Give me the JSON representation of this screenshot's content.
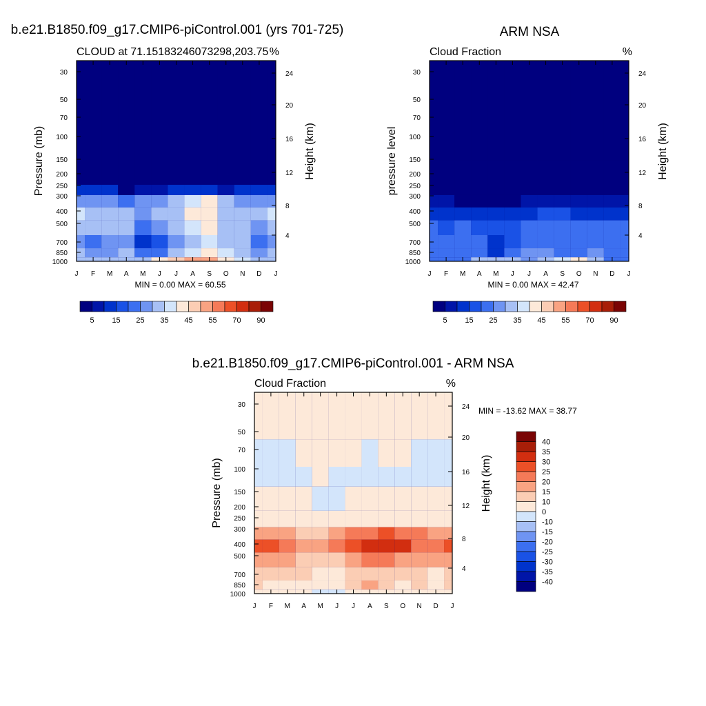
{
  "palettes": {
    "abs": [
      "#00007f",
      "#0015a8",
      "#0033cc",
      "#1a52e6",
      "#3c6ff0",
      "#6f94f2",
      "#a7c0f5",
      "#d3e5fb",
      "#fde9d9",
      "#fbcdb4",
      "#f9a382",
      "#f57a58",
      "#ec5027",
      "#d22e10",
      "#a81e08",
      "#7a0404"
    ],
    "diff": [
      "#00007f",
      "#0015a8",
      "#0033cc",
      "#1a52e6",
      "#3c6ff0",
      "#6f94f2",
      "#a7c0f5",
      "#d3e5fb",
      "#fde9d9",
      "#fbcdb4",
      "#f9a382",
      "#f57a58",
      "#ec5027",
      "#d22e10",
      "#a81e08",
      "#7a0404"
    ]
  },
  "colorbar_abs": {
    "labels": [
      "5",
      "15",
      "25",
      "35",
      "45",
      "55",
      "70",
      "90"
    ]
  },
  "colorbar_diff": {
    "labels": [
      "40",
      "35",
      "30",
      "25",
      "20",
      "15",
      "10",
      "0",
      "-10",
      "-15",
      "-20",
      "-25",
      "-30",
      "-35",
      "-40"
    ]
  },
  "chart_data": [
    {
      "type": "heatmap",
      "title": "b.e21.B1850.f09_g17.CMIP6-piControl.001 (yrs 701-725)",
      "subtitle_left": "CLOUD at 71.15183246073298,203.75",
      "subtitle_right": "%",
      "ylabel": "Pressure (mb)",
      "ylabel_right": "Height (km)",
      "x": [
        "J",
        "F",
        "M",
        "A",
        "M",
        "J",
        "J",
        "A",
        "S",
        "O",
        "N",
        "D",
        "J"
      ],
      "y_pressure_ticks": [
        "30",
        "50",
        "70",
        "100",
        "150",
        "200",
        "250",
        "300",
        "400",
        "500",
        "700",
        "850",
        "1000"
      ],
      "y_height_ticks": [
        "24",
        "20",
        "16",
        "12",
        "8",
        "4"
      ],
      "stats": "MIN =   0.00 MAX =  60.55",
      "min": 0.0,
      "max": 60.55,
      "bands": [
        {
          "p": 30,
          "values": [
            2,
            2,
            2,
            2,
            2,
            2,
            2,
            2,
            2,
            2,
            2,
            2,
            2
          ]
        },
        {
          "p": 200,
          "values": [
            3,
            3,
            3,
            2,
            2,
            2,
            2,
            2,
            2,
            2,
            2,
            3,
            3
          ]
        },
        {
          "p": 250,
          "values": [
            12,
            12,
            10,
            4,
            6,
            8,
            10,
            10,
            10,
            8,
            10,
            12,
            12
          ]
        },
        {
          "p": 300,
          "values": [
            28,
            26,
            26,
            24,
            26,
            28,
            30,
            38,
            40,
            30,
            28,
            28,
            28
          ]
        },
        {
          "p": 400,
          "values": [
            35,
            32,
            30,
            30,
            28,
            30,
            34,
            42,
            42,
            34,
            32,
            30,
            35
          ]
        },
        {
          "p": 500,
          "values": [
            30,
            30,
            30,
            32,
            22,
            26,
            34,
            36,
            40,
            34,
            34,
            28,
            30
          ]
        },
        {
          "p": 700,
          "values": [
            26,
            24,
            26,
            28,
            14,
            18,
            28,
            34,
            36,
            34,
            32,
            22,
            26
          ]
        },
        {
          "p": 850,
          "values": [
            30,
            28,
            28,
            30,
            22,
            24,
            32,
            38,
            44,
            36,
            34,
            28,
            30
          ]
        },
        {
          "p": 1000,
          "values": [
            32,
            32,
            32,
            34,
            34,
            40,
            48,
            52,
            50,
            40,
            36,
            34,
            32
          ]
        }
      ]
    },
    {
      "type": "heatmap",
      "title": "ARM NSA",
      "subtitle_left": "Cloud Fraction",
      "subtitle_right": "%",
      "ylabel": "pressure level",
      "ylabel_right": "Height (km)",
      "x": [
        "J",
        "F",
        "M",
        "A",
        "M",
        "J",
        "J",
        "A",
        "S",
        "O",
        "N",
        "D",
        "J"
      ],
      "y_pressure_ticks": [
        "30",
        "50",
        "70",
        "100",
        "150",
        "200",
        "250",
        "300",
        "400",
        "500",
        "700",
        "850",
        "1000"
      ],
      "y_height_ticks": [
        "24",
        "20",
        "16",
        "12",
        "8",
        "4"
      ],
      "stats": "MIN =   0.00 MAX =  42.47",
      "min": 0.0,
      "max": 42.47,
      "bands": [
        {
          "p": 30,
          "values": [
            1,
            1,
            1,
            1,
            1,
            1,
            1,
            1,
            1,
            1,
            1,
            1,
            1
          ]
        },
        {
          "p": 250,
          "values": [
            2,
            2,
            2,
            2,
            2,
            2,
            2,
            2,
            2,
            2,
            2,
            2,
            2
          ]
        },
        {
          "p": 300,
          "values": [
            6,
            6,
            4,
            3,
            3,
            4,
            5,
            6,
            8,
            8,
            8,
            6,
            6
          ]
        },
        {
          "p": 400,
          "values": [
            14,
            14,
            10,
            10,
            10,
            12,
            14,
            16,
            16,
            14,
            14,
            14,
            14
          ]
        },
        {
          "p": 500,
          "values": [
            20,
            18,
            20,
            18,
            16,
            18,
            22,
            20,
            22,
            20,
            20,
            20,
            20
          ]
        },
        {
          "p": 700,
          "values": [
            22,
            22,
            22,
            20,
            12,
            18,
            24,
            24,
            22,
            22,
            24,
            22,
            22
          ]
        },
        {
          "p": 850,
          "values": [
            24,
            24,
            24,
            24,
            14,
            20,
            26,
            26,
            24,
            24,
            26,
            24,
            24
          ]
        },
        {
          "p": 1000,
          "values": [
            22,
            22,
            22,
            30,
            34,
            30,
            28,
            32,
            36,
            40,
            30,
            22,
            22
          ]
        }
      ]
    },
    {
      "type": "heatmap",
      "title": "b.e21.B1850.f09_g17.CMIP6-piControl.001 - ARM NSA",
      "subtitle_left": "Cloud Fraction",
      "subtitle_right": "%",
      "ylabel": "Pressure (mb)",
      "ylabel_right": "Height (km)",
      "x": [
        "J",
        "F",
        "M",
        "A",
        "M",
        "J",
        "J",
        "A",
        "S",
        "O",
        "N",
        "D",
        "J"
      ],
      "y_pressure_ticks": [
        "30",
        "50",
        "70",
        "100",
        "150",
        "200",
        "250",
        "300",
        "400",
        "500",
        "700",
        "850",
        "1000"
      ],
      "y_height_ticks": [
        "24",
        "20",
        "16",
        "12",
        "8",
        "4"
      ],
      "stats": "MIN = -13.62 MAX =  38.77",
      "min": -13.62,
      "max": 38.77,
      "bands": [
        {
          "p": 30,
          "values": [
            2,
            2,
            2,
            2,
            2,
            2,
            2,
            2,
            2,
            2,
            2,
            2,
            2
          ]
        },
        {
          "p": 70,
          "values": [
            -1,
            -1,
            -1,
            2,
            2,
            2,
            2,
            -1,
            2,
            2,
            -1,
            -1,
            -1
          ]
        },
        {
          "p": 100,
          "values": [
            -1,
            -1,
            -1,
            -1,
            2,
            -1,
            -1,
            -1,
            -1,
            -1,
            -1,
            -1,
            -1
          ]
        },
        {
          "p": 150,
          "values": [
            2,
            2,
            2,
            2,
            -1,
            -1,
            2,
            2,
            2,
            2,
            2,
            2,
            2
          ]
        },
        {
          "p": 250,
          "values": [
            8,
            8,
            8,
            8,
            8,
            8,
            8,
            8,
            8,
            8,
            8,
            8,
            8
          ]
        },
        {
          "p": 300,
          "values": [
            18,
            18,
            16,
            14,
            14,
            16,
            22,
            24,
            26,
            24,
            20,
            18,
            18
          ]
        },
        {
          "p": 400,
          "values": [
            26,
            26,
            22,
            18,
            18,
            22,
            28,
            32,
            34,
            32,
            24,
            24,
            26
          ]
        },
        {
          "p": 500,
          "values": [
            16,
            16,
            16,
            14,
            12,
            14,
            18,
            20,
            22,
            18,
            16,
            16,
            16
          ]
        },
        {
          "p": 700,
          "values": [
            12,
            12,
            12,
            10,
            6,
            6,
            10,
            14,
            12,
            10,
            12,
            6,
            12
          ]
        },
        {
          "p": 850,
          "values": [
            10,
            8,
            8,
            8,
            6,
            8,
            14,
            18,
            12,
            8,
            10,
            8,
            10
          ]
        },
        {
          "p": 1000,
          "values": [
            4,
            4,
            4,
            2,
            -4,
            -1,
            6,
            6,
            4,
            2,
            4,
            4,
            4
          ]
        }
      ]
    }
  ]
}
